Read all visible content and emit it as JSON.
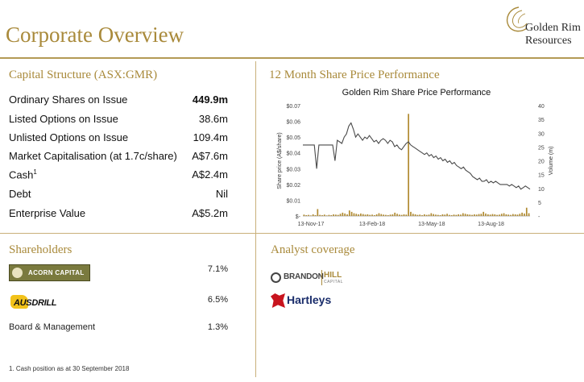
{
  "page": {
    "title": "Corporate Overview"
  },
  "logo": {
    "line1": "Golden Rim",
    "line2": "Resources"
  },
  "capital": {
    "heading": "Capital Structure (ASX:GMR)",
    "rows": [
      {
        "label": "Ordinary Shares on Issue",
        "value": "449.9m"
      },
      {
        "label": "Listed Options on Issue",
        "value": "38.6m"
      },
      {
        "label": "Unlisted Options on Issue",
        "value": "109.4m"
      },
      {
        "label": "Market Capitalisation (at 1.7c/share)",
        "value": "A$7.6m"
      },
      {
        "label": "Cash",
        "sup": "1",
        "value": "A$2.4m"
      },
      {
        "label": "Debt",
        "value": "Nil"
      },
      {
        "label": "Enterprise Value",
        "value": "A$5.2m"
      }
    ]
  },
  "performance": {
    "heading": "12 Month Share Price Performance"
  },
  "shareholders": {
    "heading": "Shareholders",
    "rows": [
      {
        "name": "ACORN CAPITAL",
        "pct": "7.1%"
      },
      {
        "name": "AUSDRILL",
        "pct": "6.5%"
      },
      {
        "name": "Board & Management",
        "pct": "1.3%"
      }
    ]
  },
  "analyst": {
    "heading": "Analyst coverage",
    "brandon": {
      "word1": "BRANDON",
      "word2": "HILL",
      "word3": "CAPITAL"
    },
    "hartleys": "Hartleys"
  },
  "footnote": "1. Cash position as at 30 September 2018",
  "chart_data": {
    "type": "line",
    "title": "Golden Rim Share Price Performance",
    "ylabel": "Share price (A$/share)",
    "y2label": "Volume (m)",
    "xlabel": "",
    "x_ticks": [
      "13-Nov-17",
      "13-Feb-18",
      "13-May-18",
      "13-Aug-18"
    ],
    "y_ticks": [
      "$-",
      "$0.01",
      "$0.02",
      "$0.03",
      "$0.04",
      "$0.05",
      "$0.06",
      "$0.07"
    ],
    "y2_ticks": [
      "-",
      "5",
      "10",
      "15",
      "20",
      "25",
      "30",
      "35",
      "40"
    ],
    "ylim": [
      0,
      0.07
    ],
    "y2lim": [
      0,
      40
    ],
    "series": [
      {
        "kind": "line",
        "values": [
          0.045,
          0.045,
          0.045,
          0.045,
          0.045,
          0.045,
          0.03,
          0.045,
          0.045,
          0.045,
          0.045,
          0.045,
          0.045,
          0.045,
          0.035,
          0.048,
          0.047,
          0.046,
          0.05,
          0.052,
          0.057,
          0.059,
          0.055,
          0.05,
          0.052,
          0.05,
          0.048,
          0.05,
          0.049,
          0.051,
          0.049,
          0.047,
          0.048,
          0.046,
          0.048,
          0.049,
          0.048,
          0.046,
          0.048,
          0.047,
          0.044,
          0.045,
          0.043,
          0.042,
          0.044,
          0.046,
          0.047,
          0.045,
          0.044,
          0.043,
          0.042,
          0.041,
          0.04,
          0.039,
          0.04,
          0.038,
          0.039,
          0.037,
          0.038,
          0.036,
          0.037,
          0.035,
          0.036,
          0.034,
          0.035,
          0.033,
          0.034,
          0.032,
          0.031,
          0.03,
          0.031,
          0.029,
          0.028,
          0.027,
          0.025,
          0.024,
          0.023,
          0.024,
          0.022,
          0.022,
          0.023,
          0.021,
          0.022,
          0.021,
          0.022,
          0.021,
          0.02,
          0.02,
          0.02,
          0.02,
          0.019,
          0.02,
          0.019,
          0.018,
          0.019,
          0.017,
          0.018,
          0.019,
          0.018,
          0.017
        ]
      },
      {
        "kind": "bar",
        "axis": "y2",
        "values": [
          0.5,
          0.3,
          0.4,
          0.2,
          0.6,
          0.3,
          2.5,
          0.4,
          0.3,
          0.5,
          0.2,
          0.4,
          0.3,
          0.6,
          0.5,
          0.4,
          0.8,
          1.2,
          0.9,
          0.6,
          2.0,
          1.5,
          1.0,
          0.8,
          0.6,
          0.9,
          0.7,
          0.5,
          0.6,
          0.4,
          0.5,
          0.3,
          0.6,
          1.0,
          0.7,
          0.5,
          0.4,
          0.3,
          0.5,
          0.6,
          1.2,
          0.8,
          0.5,
          0.4,
          0.6,
          0.5,
          37,
          1.5,
          0.8,
          0.6,
          0.4,
          0.5,
          0.3,
          0.6,
          0.4,
          0.5,
          1.0,
          0.7,
          0.5,
          0.4,
          0.3,
          0.6,
          0.5,
          0.8,
          0.4,
          0.3,
          0.5,
          0.4,
          0.6,
          0.5,
          1.0,
          0.8,
          0.6,
          0.5,
          0.4,
          0.6,
          0.5,
          0.7,
          0.8,
          1.5,
          0.9,
          0.6,
          0.5,
          0.7,
          0.6,
          0.4,
          0.5,
          0.8,
          1.0,
          0.6,
          0.5,
          0.4,
          0.7,
          0.6,
          0.5,
          0.8,
          1.2,
          0.9,
          3.0,
          1.0
        ]
      }
    ]
  }
}
